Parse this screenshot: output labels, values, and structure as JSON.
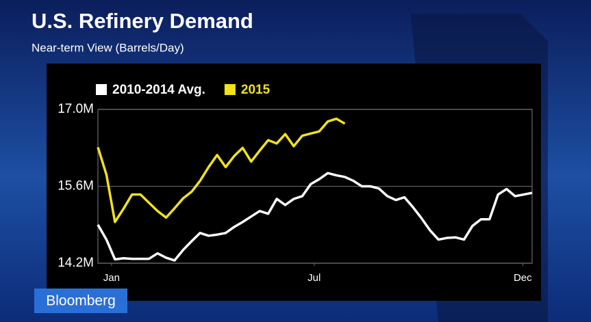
{
  "chart_data": {
    "type": "line",
    "title": "U.S. Refinery Demand",
    "subtitle": "Near-term View (Barrels/Day)",
    "brand": "Bloomberg",
    "x": [
      1,
      2,
      3,
      4,
      5,
      6,
      7,
      8,
      9,
      10,
      11,
      12,
      13,
      14,
      15,
      16,
      17,
      18,
      19,
      20,
      21,
      22,
      23,
      24,
      25,
      26,
      27,
      28,
      29,
      30,
      31,
      32,
      33,
      34,
      35,
      36,
      37,
      38,
      39,
      40,
      41,
      42,
      43,
      44,
      45,
      46,
      47,
      48,
      49,
      50,
      51,
      52
    ],
    "xlim": [
      1,
      52
    ],
    "xticks": [
      {
        "value": 2.6,
        "label": "Jan"
      },
      {
        "value": 26.4,
        "label": "Jul"
      },
      {
        "value": 50.9,
        "label": "Dec"
      }
    ],
    "ylim": [
      14.2,
      17.0
    ],
    "yticks": [
      {
        "value": 17.0,
        "label": "17.0M"
      },
      {
        "value": 15.6,
        "label": "15.6M"
      },
      {
        "value": 14.2,
        "label": "14.2M"
      }
    ],
    "grid": true,
    "legend": "top",
    "series": [
      {
        "name": "2010-2014 Avg.",
        "color": "#ffffff",
        "values": [
          14.9,
          14.63,
          14.27,
          14.29,
          14.28,
          14.28,
          14.28,
          14.38,
          14.3,
          14.25,
          14.44,
          14.6,
          14.75,
          14.7,
          14.72,
          14.75,
          14.86,
          14.95,
          15.05,
          15.15,
          15.1,
          15.37,
          15.26,
          15.37,
          15.42,
          15.64,
          15.73,
          15.84,
          15.8,
          15.77,
          15.7,
          15.6,
          15.6,
          15.56,
          15.42,
          15.35,
          15.4,
          15.22,
          15.02,
          14.8,
          14.63,
          14.66,
          14.67,
          14.63,
          14.88,
          15.0,
          15.0,
          15.45,
          15.55,
          15.42,
          15.45,
          15.48
        ]
      },
      {
        "name": "2015",
        "color": "#f2e21b",
        "values": [
          16.31,
          15.81,
          14.95,
          15.19,
          15.45,
          15.45,
          15.3,
          15.15,
          15.03,
          15.2,
          15.38,
          15.5,
          15.7,
          15.95,
          16.17,
          15.95,
          16.15,
          16.3,
          16.05,
          16.25,
          16.44,
          16.38,
          16.55,
          16.33,
          16.52,
          16.56,
          16.6,
          16.78,
          16.83,
          16.74,
          null,
          null,
          null,
          null,
          null,
          null,
          null,
          null,
          null,
          null,
          null,
          null,
          null,
          null,
          null,
          null,
          null,
          null,
          null,
          null,
          null,
          null
        ]
      }
    ]
  }
}
